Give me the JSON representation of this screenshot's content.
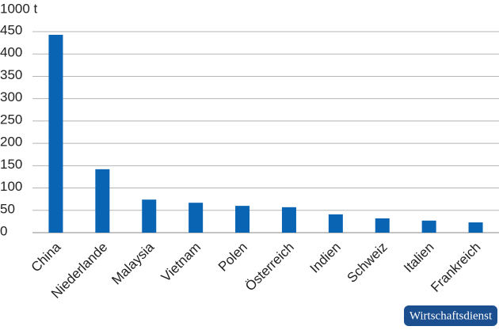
{
  "chart_data": {
    "type": "bar",
    "y_label": "1000 t",
    "categories": [
      "China",
      "Niederlande",
      "Malaysia",
      "Vietnam",
      "Polen",
      "Österreich",
      "Indien",
      "Schweiz",
      "Italien",
      "Frankreich"
    ],
    "values": [
      443,
      142,
      74,
      67,
      60,
      57,
      41,
      32,
      27,
      23
    ],
    "color": "#0a64b4",
    "ylim": [
      0,
      450
    ],
    "yticks": [
      0,
      50,
      100,
      150,
      200,
      250,
      300,
      350,
      400,
      450
    ],
    "grid": true
  },
  "badge": "Wirtschaftsdienst"
}
